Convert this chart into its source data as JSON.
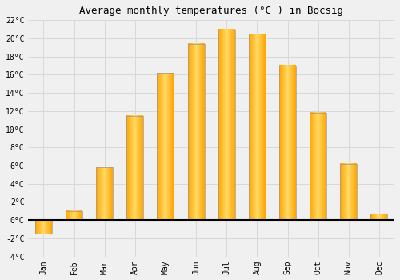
{
  "months": [
    "Jan",
    "Feb",
    "Mar",
    "Apr",
    "May",
    "Jun",
    "Jul",
    "Aug",
    "Sep",
    "Oct",
    "Nov",
    "Dec"
  ],
  "values": [
    -1.5,
    1.0,
    5.8,
    11.5,
    16.2,
    19.4,
    21.0,
    20.5,
    17.0,
    11.8,
    6.2,
    0.7
  ],
  "title": "Average monthly temperatures (°C ) in Bocsig",
  "ylim": [
    -4,
    22
  ],
  "yticks": [
    -4,
    -2,
    0,
    2,
    4,
    6,
    8,
    10,
    12,
    14,
    16,
    18,
    20,
    22
  ],
  "background_color": "#f0f0f0",
  "grid_color": "#d8d8d8",
  "title_fontsize": 9,
  "tick_fontsize": 7,
  "bar_color_center": "#FFD966",
  "bar_color_edge": "#FFA500",
  "bar_edge_color": "#999999",
  "bar_width": 0.55
}
